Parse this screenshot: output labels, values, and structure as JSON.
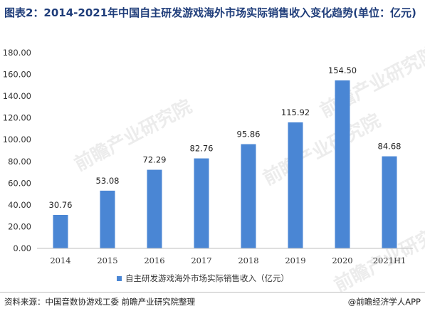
{
  "title": "图表2：2014-2021年中国自主研发游戏海外市场实际销售收入变化趋势(单位：亿元)",
  "watermark": "前瞻产业研究院",
  "footer": {
    "source": "资料来源：中国音数协游戏工委 前瞻产业研究院整理",
    "brand": "@前瞻经济学人APP"
  },
  "colors": {
    "bar": "#4a86d4",
    "title": "#1f3d7a",
    "axis": "#bfbfbf"
  },
  "chart_data": {
    "type": "bar",
    "categories": [
      "2014",
      "2015",
      "2016",
      "2017",
      "2018",
      "2019",
      "2020",
      "2021H1"
    ],
    "series": [
      {
        "name": "自主研发游戏海外市场实际销售收入（亿元）",
        "values": [
          30.76,
          53.08,
          72.29,
          82.76,
          95.86,
          115.92,
          154.5,
          84.68
        ],
        "labels": [
          "30.76",
          "53.08",
          "72.29",
          "82.76",
          "95.86",
          "115.92",
          "154.50",
          "84.68"
        ]
      }
    ],
    "yticks": [
      "0.00",
      "20.00",
      "40.00",
      "60.00",
      "80.00",
      "100.00",
      "120.00",
      "140.00",
      "160.00",
      "180.00"
    ],
    "ylim": [
      0,
      180
    ],
    "grid": false,
    "legend": "bottom"
  }
}
